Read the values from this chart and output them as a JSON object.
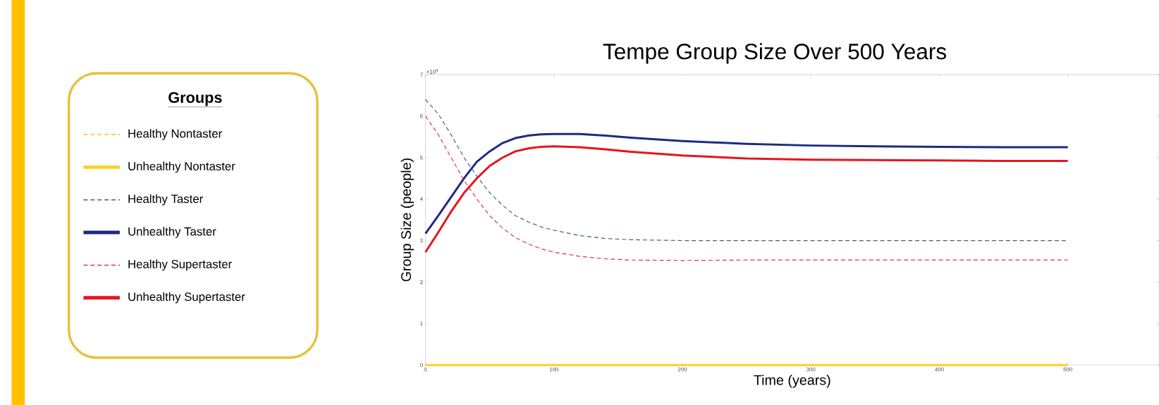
{
  "chart_data": {
    "type": "line",
    "title": "Tempe Group Size Over 500 Years",
    "xlabel": "Time (years)",
    "ylabel": "Group Size (people)",
    "legend_title": "Groups",
    "legend": "left",
    "x": [
      0,
      10,
      20,
      30,
      40,
      50,
      60,
      70,
      80,
      90,
      100,
      120,
      140,
      160,
      200,
      250,
      300,
      350,
      400,
      450,
      500
    ],
    "xlim": [
      0,
      571
    ],
    "xticks": [
      0,
      100,
      200,
      300,
      400,
      500
    ],
    "ylim": [
      0,
      7
    ],
    "yticks": [
      0,
      1,
      2,
      3,
      4,
      5,
      6,
      7
    ],
    "annotations": [
      "×10$^{4}$"
    ],
    "series": [
      {
        "name": "Healthy Nontaster",
        "color": "#ffc000",
        "line_style": "dashed",
        "values": [
          null,
          null,
          null,
          null,
          null,
          null,
          null,
          null,
          null,
          null,
          null,
          null,
          null,
          null,
          null,
          null,
          null,
          null,
          null,
          null,
          null
        ]
      },
      {
        "name": "Unhealthy Nontaster",
        "color": "#ffd21e",
        "line_style": "solid",
        "values": [
          0,
          0,
          0,
          0,
          0,
          0,
          0,
          0,
          0,
          0,
          0,
          0,
          0,
          0,
          0,
          0,
          0,
          0,
          0,
          0,
          0
        ]
      },
      {
        "name": "Healthy Taster",
        "color": "#4a5a8c",
        "line_style": "dashed",
        "values": [
          6.4,
          6.05,
          5.55,
          5.0,
          4.55,
          4.15,
          3.85,
          3.6,
          3.45,
          3.33,
          3.25,
          3.12,
          3.05,
          3.02,
          3.0,
          3.0,
          3.0,
          3.0,
          3.0,
          3.0,
          3.0
        ]
      },
      {
        "name": "Unhealthy Taster",
        "color": "#1f2a80",
        "line_style": "solid",
        "values": [
          3.17,
          3.6,
          4.05,
          4.5,
          4.9,
          5.15,
          5.35,
          5.47,
          5.53,
          5.56,
          5.57,
          5.57,
          5.53,
          5.48,
          5.4,
          5.33,
          5.29,
          5.27,
          5.26,
          5.25,
          5.25
        ]
      },
      {
        "name": "Healthy Supertaster",
        "color": "#d9383c",
        "line_style": "dashed",
        "values": [
          6.0,
          5.55,
          5.0,
          4.45,
          4.0,
          3.6,
          3.3,
          3.07,
          2.92,
          2.8,
          2.72,
          2.62,
          2.56,
          2.53,
          2.52,
          2.53,
          2.53,
          2.53,
          2.53,
          2.53,
          2.53
        ]
      },
      {
        "name": "Unhealthy Supertaster",
        "color": "#e8141b",
        "line_style": "solid",
        "values": [
          2.72,
          3.2,
          3.7,
          4.15,
          4.5,
          4.8,
          5.0,
          5.15,
          5.22,
          5.26,
          5.27,
          5.25,
          5.2,
          5.14,
          5.05,
          4.98,
          4.95,
          4.94,
          4.93,
          4.92,
          4.92
        ]
      }
    ]
  }
}
